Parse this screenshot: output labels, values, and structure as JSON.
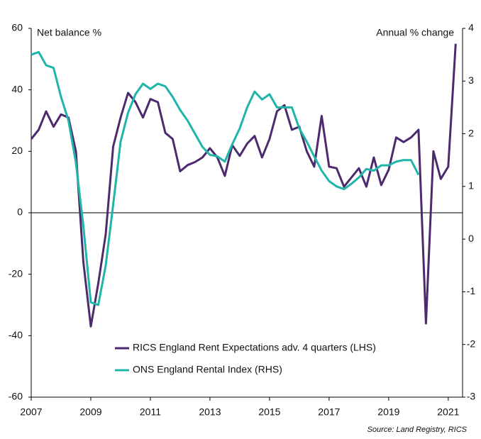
{
  "chart_data": {
    "type": "line",
    "y_label": "Net balance %",
    "y2_label": "Annual % change",
    "source": "Source: Land Registry, RICS",
    "x": [
      2007,
      2007.25,
      2007.5,
      2007.75,
      2008,
      2008.25,
      2008.5,
      2008.75,
      2009,
      2009.25,
      2009.5,
      2009.75,
      2010,
      2010.25,
      2010.5,
      2010.75,
      2011,
      2011.25,
      2011.5,
      2011.75,
      2012,
      2012.25,
      2012.5,
      2012.75,
      2013,
      2013.25,
      2013.5,
      2013.75,
      2014,
      2014.25,
      2014.5,
      2014.75,
      2015,
      2015.25,
      2015.5,
      2015.75,
      2016,
      2016.25,
      2016.5,
      2016.75,
      2017,
      2017.25,
      2017.5,
      2017.75,
      2018,
      2018.25,
      2018.5,
      2018.75,
      2019,
      2019.25,
      2019.5,
      2019.75,
      2020,
      2020.25,
      2020.5,
      2020.75,
      2021,
      2021.25
    ],
    "series": [
      {
        "name": "RICS England Rent Expectations adv. 4 quarters (LHS)",
        "color": "#4d2a6e",
        "axis": "y",
        "values": [
          24,
          27,
          33,
          28,
          32,
          31,
          20,
          -16,
          -37,
          -23,
          -7,
          21.5,
          31,
          39,
          36,
          31,
          37,
          36,
          26,
          24,
          13.5,
          15.5,
          16.5,
          18,
          21,
          18,
          12,
          22,
          18.5,
          22.5,
          25,
          18,
          24,
          33,
          35,
          27,
          28,
          20,
          15,
          31.5,
          15,
          14.5,
          8.5,
          11.5,
          14.5,
          8.5,
          18,
          9,
          14,
          24.5,
          23,
          24.5,
          27,
          -36,
          20,
          11,
          15,
          55
        ]
      },
      {
        "name": "ONS England Rental Index (RHS)",
        "color": "#1fb5a8",
        "axis": "y2",
        "values": [
          3.5,
          3.55,
          3.3,
          3.25,
          2.7,
          2.25,
          1.45,
          0.25,
          -1.2,
          -1.25,
          -0.5,
          0.65,
          1.85,
          2.4,
          2.75,
          2.95,
          2.85,
          2.95,
          2.9,
          2.7,
          2.45,
          2.25,
          2.0,
          1.75,
          1.6,
          1.57,
          1.47,
          1.8,
          2.1,
          2.5,
          2.8,
          2.65,
          2.75,
          2.5,
          2.5,
          2.5,
          2.1,
          1.85,
          1.57,
          1.3,
          1.1,
          1.0,
          0.95,
          1.05,
          1.17,
          1.33,
          1.3,
          1.4,
          1.4,
          1.47,
          1.5,
          1.5,
          1.22,
          null,
          null,
          null,
          null,
          null
        ]
      }
    ],
    "xlim": [
      2007,
      2021.48
    ],
    "xticks": [
      2007,
      2009,
      2011,
      2013,
      2015,
      2017,
      2019,
      2021
    ],
    "ylim": [
      -60,
      60
    ],
    "yticks": [
      60,
      40,
      20,
      0,
      -20,
      -40,
      -60
    ],
    "y2lim": [
      -3,
      4
    ],
    "y2ticks": [
      4,
      3,
      2,
      1,
      0,
      -1,
      -2,
      -3
    ]
  }
}
